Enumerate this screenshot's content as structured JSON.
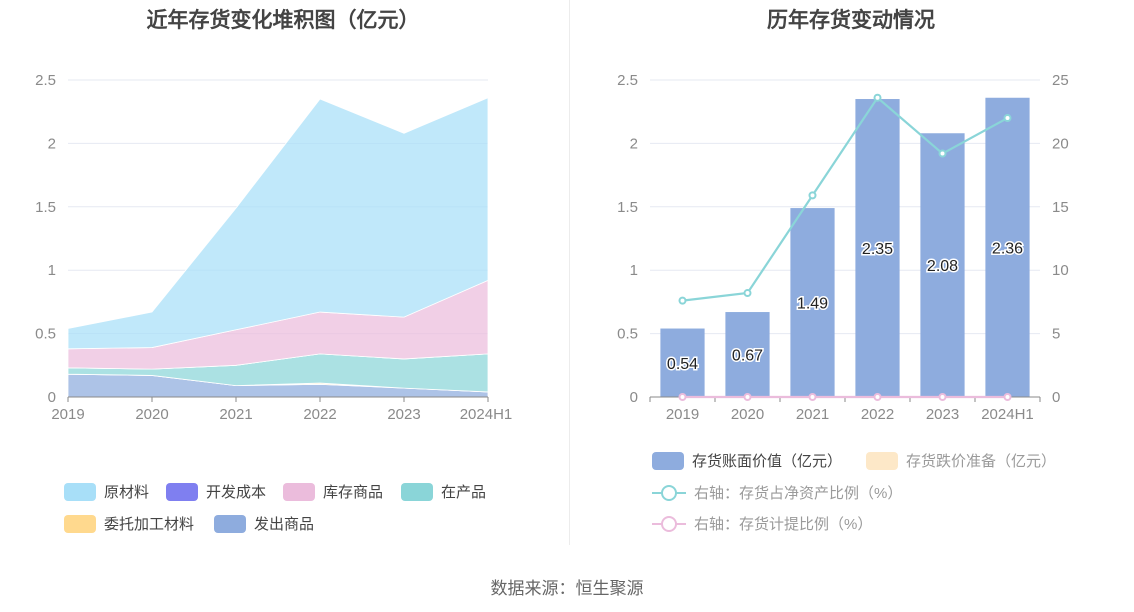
{
  "source": "数据来源：恒生聚源",
  "chart_data": [
    {
      "type": "area",
      "title": "近年存货变化堆积图（亿元）",
      "categories": [
        "2019",
        "2020",
        "2021",
        "2022",
        "2023",
        "2024H1"
      ],
      "ylim": [
        0,
        2.5
      ],
      "yticks": [
        "0",
        "0.5",
        "1",
        "1.5",
        "2",
        "2.5"
      ],
      "series": [
        {
          "name": "发出商品",
          "color": "#8eacde",
          "values": [
            0.18,
            0.17,
            0.09,
            0.1,
            0.07,
            0.04
          ]
        },
        {
          "name": "委托加工材料",
          "color": "#ffd98e",
          "values": [
            0.0,
            0.0,
            0.0,
            0.01,
            0.0,
            0.0
          ]
        },
        {
          "name": "在产品",
          "color": "#8ad5d8",
          "values": [
            0.05,
            0.05,
            0.16,
            0.23,
            0.23,
            0.3
          ]
        },
        {
          "name": "开发成本",
          "color": "#7f7ff0",
          "values": [
            0.0,
            0.0,
            0.0,
            0.0,
            0.0,
            0.0
          ]
        },
        {
          "name": "库存商品",
          "color": "#ebbcdc",
          "values": [
            0.15,
            0.17,
            0.28,
            0.33,
            0.33,
            0.58
          ]
        },
        {
          "name": "原材料",
          "color": "#a8dff8",
          "values": [
            0.16,
            0.28,
            0.96,
            1.68,
            1.45,
            1.44
          ]
        }
      ],
      "legend": [
        "原材料",
        "开发成本",
        "库存商品",
        "在产品",
        "委托加工材料",
        "发出商品"
      ],
      "grid": true
    },
    {
      "type": "bar",
      "title": "历年存货变动情况",
      "categories": [
        "2019",
        "2020",
        "2021",
        "2022",
        "2023",
        "2024H1"
      ],
      "ylim": [
        0,
        2.5
      ],
      "y2lim": [
        0,
        25
      ],
      "yticks": [
        "0",
        "0.5",
        "1",
        "1.5",
        "2",
        "2.5"
      ],
      "y2ticks": [
        "0",
        "5",
        "10",
        "15",
        "20",
        "25"
      ],
      "series": [
        {
          "name": "存货账面价值（亿元）",
          "type": "bar",
          "axis": "left",
          "color": "#8eacde",
          "values": [
            0.54,
            0.67,
            1.49,
            2.35,
            2.08,
            2.36
          ]
        },
        {
          "name": "存货跌价准备（亿元）",
          "type": "bar",
          "axis": "left",
          "color": "#fde8c8",
          "values": [
            0,
            0,
            0,
            0,
            0,
            0
          ]
        },
        {
          "name": "右轴：存货占净资产比例（%）",
          "type": "line",
          "axis": "right",
          "color": "#8ad5d8",
          "values": [
            7.6,
            8.2,
            15.9,
            23.6,
            19.2,
            22.0
          ]
        },
        {
          "name": "右轴：存货计提比例（%）",
          "type": "line",
          "axis": "right",
          "color": "#ebbcdc",
          "values": [
            0,
            0,
            0,
            0,
            0,
            0
          ]
        }
      ],
      "data_labels": [
        "0.54",
        "0.67",
        "1.49",
        "2.35",
        "2.08",
        "2.36"
      ],
      "grid": true
    }
  ]
}
